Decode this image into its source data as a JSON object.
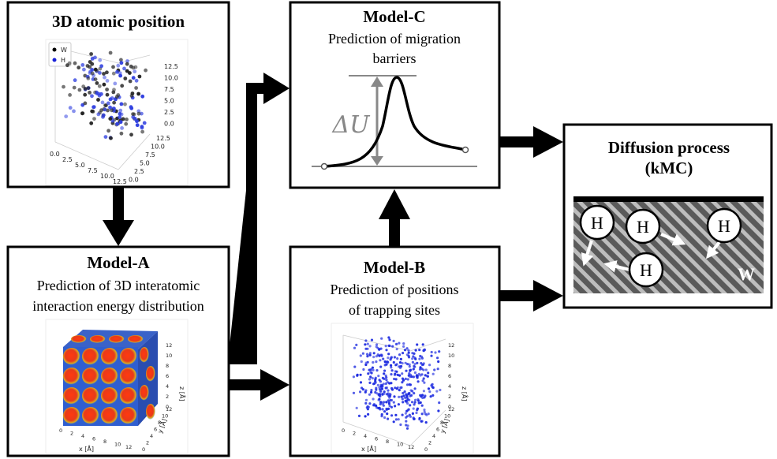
{
  "atomic": {
    "title": "3D atomic position",
    "legend": [
      "W",
      "H"
    ],
    "z_ticks": [
      "12.5",
      "10.0",
      "7.5",
      "5.0",
      "2.5",
      "0.0"
    ],
    "y_ticks": [
      "12.5",
      "10.0",
      "7.5",
      "5.0",
      "2.5",
      "0.0"
    ],
    "x_ticks": [
      "0.0",
      "2.5",
      "5.0",
      "7.5",
      "10.0",
      "12.5"
    ]
  },
  "model_a": {
    "title": "Model-A",
    "subtitle": [
      "Prediction of 3D interatomic",
      "interaction energy distribution"
    ],
    "ticks": [
      "0",
      "2",
      "4",
      "6",
      "8",
      "10",
      "12"
    ],
    "x_label": "x [Å]",
    "y_label": "y [Å]",
    "z_label": "z [Å]"
  },
  "model_b": {
    "title": "Model-B",
    "subtitle": [
      "Prediction of positions",
      "of trapping sites"
    ],
    "ticks": [
      "0",
      "2",
      "4",
      "6",
      "8",
      "10",
      "12"
    ],
    "x_label": "x [Å]",
    "y_label": "y [Å]",
    "z_label": "z [Å]"
  },
  "model_c": {
    "title": "Model-C",
    "subtitle": [
      "Prediction of migration",
      "barriers"
    ],
    "delta": "ΔU"
  },
  "diffusion": {
    "title": [
      "Diffusion process",
      "(kMC)"
    ],
    "atoms": [
      "H",
      "H",
      "H",
      "H"
    ],
    "matrix": "W"
  }
}
